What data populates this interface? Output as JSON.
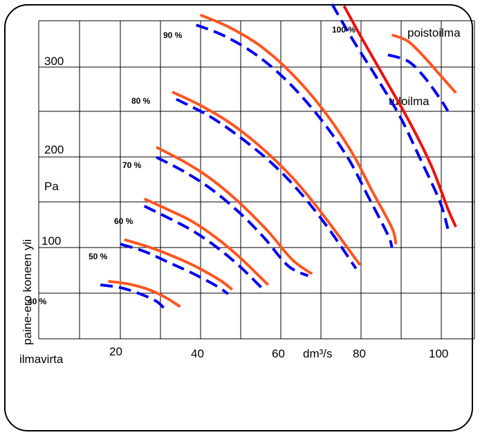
{
  "chart_data": {
    "type": "line",
    "title": "",
    "xlabel": "ilmavirta",
    "ylabel": "paine-ero koneen yli",
    "x_unit": "dm³/s",
    "y_unit": "Pa",
    "x_ticks": [
      20,
      40,
      60,
      80,
      100
    ],
    "y_ticks": [
      100,
      200,
      300
    ],
    "grid": true,
    "supply_label": "tuloilma",
    "exhaust_label": "poistoilma",
    "colors": {
      "supply": "#0000ee",
      "exhaust": "#ff5520",
      "exhaust_100": "#ee1010"
    },
    "levels": [
      {
        "label": "40 %",
        "supply": [
          [
            15,
            58
          ],
          [
            20,
            55
          ],
          [
            25,
            48
          ],
          [
            29,
            40
          ],
          [
            31,
            32
          ]
        ],
        "exhaust": [
          [
            17,
            62
          ],
          [
            22,
            59
          ],
          [
            27,
            53
          ],
          [
            31,
            45
          ],
          [
            35,
            34
          ]
        ]
      },
      {
        "label": "50 %",
        "supply": [
          [
            20,
            103
          ],
          [
            26,
            95
          ],
          [
            32,
            83
          ],
          [
            38,
            71
          ],
          [
            44,
            57
          ],
          [
            47,
            48
          ]
        ],
        "exhaust": [
          [
            21,
            108
          ],
          [
            27,
            100
          ],
          [
            33,
            90
          ],
          [
            39,
            78
          ],
          [
            45,
            63
          ],
          [
            48,
            53
          ]
        ]
      },
      {
        "label": "60 %",
        "supply": [
          [
            26,
            145
          ],
          [
            32,
            132
          ],
          [
            38,
            118
          ],
          [
            44,
            100
          ],
          [
            50,
            78
          ],
          [
            56,
            52
          ]
        ],
        "exhaust": [
          [
            26,
            153
          ],
          [
            32,
            141
          ],
          [
            38,
            128
          ],
          [
            44,
            110
          ],
          [
            50,
            88
          ],
          [
            57,
            58
          ]
        ]
      },
      {
        "label": "70 %",
        "supply": [
          [
            29,
            199
          ],
          [
            36,
            183
          ],
          [
            43,
            163
          ],
          [
            50,
            137
          ],
          [
            56,
            110
          ],
          [
            62,
            79
          ],
          [
            67,
            68
          ]
        ],
        "exhaust": [
          [
            29,
            210
          ],
          [
            36,
            194
          ],
          [
            43,
            174
          ],
          [
            50,
            148
          ],
          [
            57,
            117
          ],
          [
            63,
            86
          ],
          [
            68,
            70
          ]
        ]
      },
      {
        "label": "80 %",
        "supply": [
          [
            34,
            263
          ],
          [
            42,
            245
          ],
          [
            50,
            221
          ],
          [
            58,
            192
          ],
          [
            65,
            160
          ],
          [
            72,
            121
          ],
          [
            79,
            76
          ]
        ],
        "exhaust": [
          [
            33,
            271
          ],
          [
            41,
            254
          ],
          [
            49,
            232
          ],
          [
            57,
            203
          ],
          [
            64,
            172
          ],
          [
            71,
            134
          ],
          [
            80,
            80
          ]
        ]
      },
      {
        "label": "90 %",
        "supply": [
          [
            39,
            345
          ],
          [
            46,
            333
          ],
          [
            54,
            312
          ],
          [
            62,
            282
          ],
          [
            70,
            242
          ],
          [
            77,
            198
          ],
          [
            82,
            156
          ],
          [
            87,
            113
          ],
          [
            88,
            99
          ]
        ],
        "exhaust": [
          [
            40,
            356
          ],
          [
            47,
            343
          ],
          [
            55,
            322
          ],
          [
            63,
            291
          ],
          [
            71,
            250
          ],
          [
            78,
            204
          ],
          [
            83,
            162
          ],
          [
            88,
            121
          ],
          [
            89,
            103
          ]
        ]
      },
      {
        "label": "100 %",
        "supply": [
          [
            73,
            368
          ],
          [
            78,
            330
          ],
          [
            84,
            288
          ],
          [
            90,
            244
          ],
          [
            95,
            198
          ],
          [
            100,
            150
          ],
          [
            102,
            120
          ]
        ],
        "exhaust": [
          [
            76,
            366
          ],
          [
            81,
            326
          ],
          [
            87,
            280
          ],
          [
            93,
            233
          ],
          [
            98,
            188
          ],
          [
            102,
            142
          ],
          [
            104,
            122
          ]
        ]
      },
      {
        "label": "",
        "supply": [
          [
            87,
            312
          ],
          [
            92,
            305
          ],
          [
            96,
            288
          ],
          [
            100,
            264
          ],
          [
            102,
            250
          ]
        ],
        "exhaust": [
          [
            88,
            334
          ],
          [
            92,
            327
          ],
          [
            96,
            310
          ],
          [
            100,
            290
          ],
          [
            104,
            270
          ]
        ]
      }
    ]
  }
}
